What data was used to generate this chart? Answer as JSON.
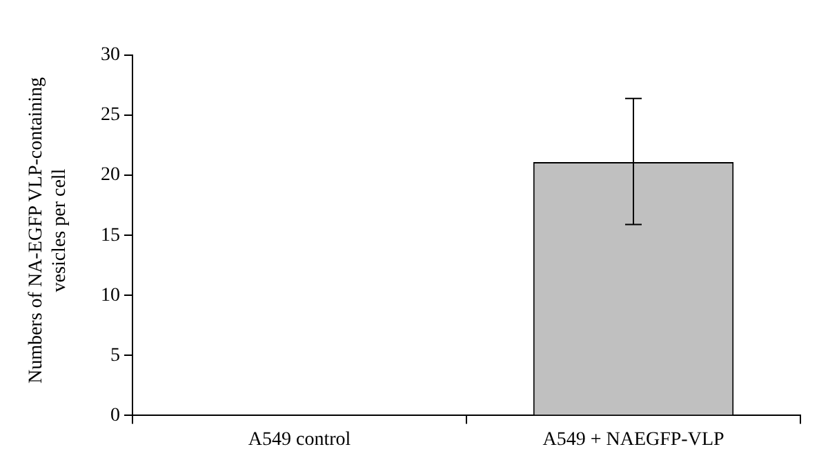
{
  "chart_data": {
    "type": "bar",
    "ylabel": "Numbers of NA-EGFP VLP-containing vesicles per cell",
    "categories": [
      "A549 control",
      "A549 + NAEGFP-VLP"
    ],
    "values": [
      0,
      21.1
    ],
    "errors": [
      null,
      [
        15.9,
        26.4
      ]
    ],
    "color": "#c0c0c0",
    "ylim": [
      0,
      30
    ],
    "yticks": [
      0,
      5,
      10,
      15,
      20,
      25,
      30
    ],
    "grid": false,
    "legend": false
  }
}
